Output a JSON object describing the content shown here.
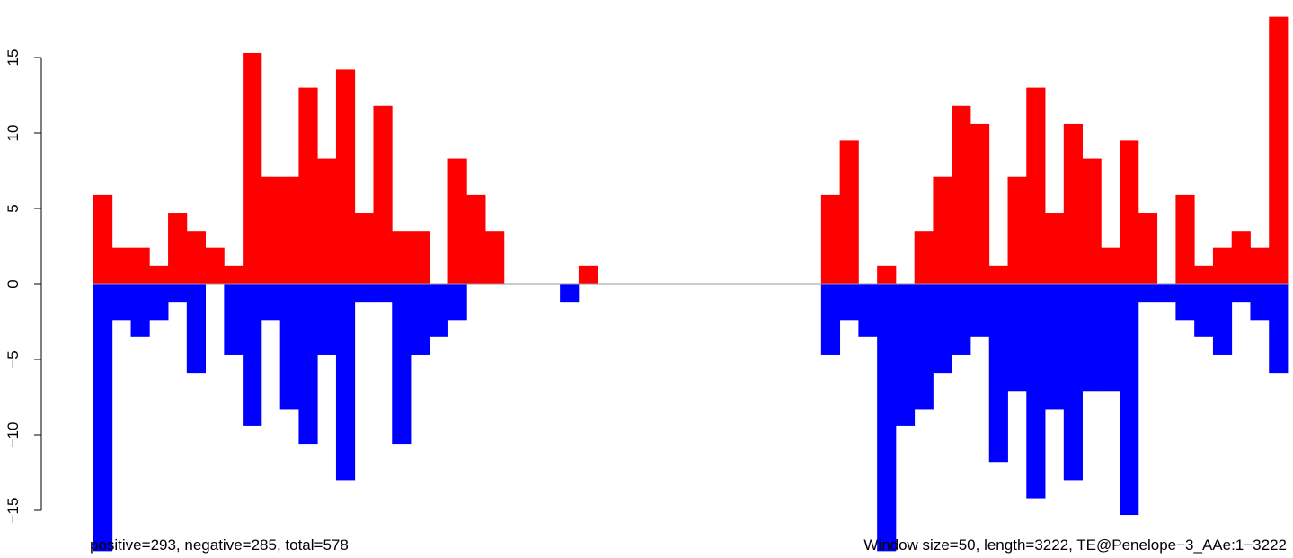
{
  "chart_data": {
    "type": "bar",
    "window_size": 50,
    "ylim": [
      -17.5,
      17.8
    ],
    "y_ticks": [
      -15,
      -10,
      -5,
      0,
      5,
      10,
      15
    ],
    "y_tick_labels": [
      "−15",
      "−10",
      "−5",
      "0",
      "5",
      "10",
      "15"
    ],
    "x_axis_visible": false,
    "grid": false,
    "series": [
      {
        "name": "positive",
        "color": "#ff0000",
        "values": [
          5.9,
          2.4,
          2.4,
          1.2,
          4.7,
          3.5,
          2.4,
          1.2,
          15.3,
          7.1,
          7.1,
          13.0,
          8.3,
          14.2,
          4.7,
          11.8,
          3.5,
          3.5,
          0,
          8.3,
          5.9,
          3.5,
          0,
          0,
          0,
          0,
          1.2,
          0,
          0,
          0,
          0,
          0,
          0,
          0,
          0,
          0,
          0,
          0,
          0,
          5.9,
          9.5,
          0,
          1.2,
          0,
          3.5,
          7.1,
          11.8,
          10.6,
          1.2,
          7.1,
          13.0,
          4.7,
          10.6,
          8.3,
          2.4,
          9.5,
          4.7,
          0,
          5.9,
          1.2,
          2.4,
          3.5,
          2.4,
          17.7
        ]
      },
      {
        "name": "negative",
        "color": "#0000ff",
        "values": [
          -17.7,
          -2.4,
          -3.5,
          -2.4,
          -1.2,
          -5.9,
          0,
          -4.7,
          -9.4,
          -2.4,
          -8.3,
          -10.6,
          -4.7,
          -13.0,
          -1.2,
          -1.2,
          -10.6,
          -4.7,
          -3.5,
          -2.4,
          0,
          0,
          0,
          0,
          0,
          -1.2,
          0,
          0,
          0,
          0,
          0,
          0,
          0,
          0,
          0,
          0,
          0,
          0,
          0,
          -4.7,
          -2.4,
          -3.5,
          -17.7,
          -9.4,
          -8.3,
          -5.9,
          -4.7,
          -3.5,
          -11.8,
          -7.1,
          -14.2,
          -8.3,
          -13.0,
          -7.1,
          -7.1,
          -15.3,
          -1.2,
          -1.2,
          -2.4,
          -3.5,
          -4.7,
          -1.2,
          -2.4,
          -5.9
        ]
      }
    ],
    "annotations": {
      "left": "positive=293, negative=285, total=578",
      "right": "Window size=50, length=3222, TE@Penelope−3_AAe:1−3222"
    }
  }
}
